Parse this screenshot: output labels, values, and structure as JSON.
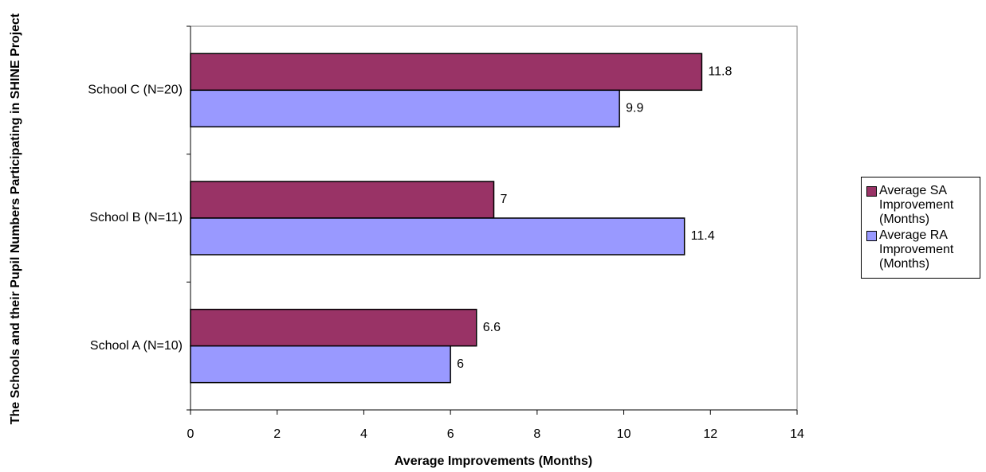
{
  "chart_data": {
    "type": "hbar",
    "x_label": "Average Improvements (Months)",
    "y_label": "The Schools and their Pupil Numbers Participating in SHINE Project",
    "categories": [
      "School A (N=10)",
      "School B (N=11)",
      "School C (N=20)"
    ],
    "series": [
      {
        "name": "Average SA Improvement (Months)",
        "color": "#993366",
        "values": [
          6.6,
          7,
          11.8
        ]
      },
      {
        "name": "Average RA Improvement (Months)",
        "color": "#9999ff",
        "values": [
          6,
          11.4,
          9.9
        ]
      }
    ],
    "xlim": [
      0,
      14
    ],
    "xticks": [
      0,
      2,
      4,
      6,
      8,
      10,
      12,
      14
    ],
    "legend": "right"
  }
}
